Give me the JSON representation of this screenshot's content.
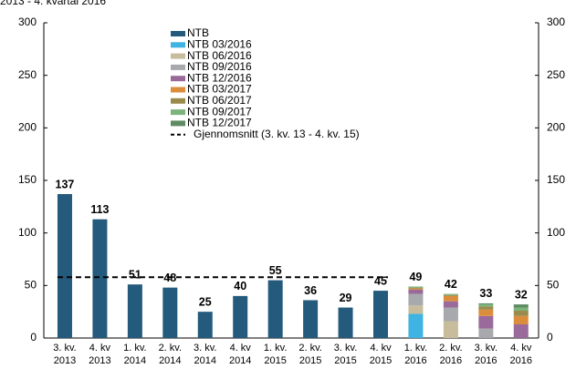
{
  "chart_data": {
    "type": "stacked_bar",
    "title": "2013 - 4. kvartal 2016",
    "categories": [
      [
        "3. kv.",
        "2013"
      ],
      [
        "4. kv",
        "2013"
      ],
      [
        "1. kv.",
        "2014"
      ],
      [
        "2. kv.",
        "2014"
      ],
      [
        "3. kv.",
        "2014"
      ],
      [
        "4. kv",
        "2014"
      ],
      [
        "1. kv.",
        "2015"
      ],
      [
        "2. kv.",
        "2015"
      ],
      [
        "3. kv.",
        "2015"
      ],
      [
        "4. kv",
        "2015"
      ],
      [
        "1. kv.",
        "2016"
      ],
      [
        "2. kv.",
        "2016"
      ],
      [
        "3. kv.",
        "2016"
      ],
      [
        "4. kv",
        "2016"
      ]
    ],
    "series": [
      {
        "name": "NTB",
        "color": "#245a7c",
        "values": [
          137,
          113,
          51,
          48,
          25,
          40,
          55,
          36,
          29,
          45,
          null,
          null,
          null,
          null
        ]
      },
      {
        "name": "NTB 03/2016",
        "color": "#3fb3e2",
        "values": [
          null,
          null,
          null,
          null,
          null,
          null,
          null,
          null,
          null,
          null,
          23,
          0,
          0,
          0
        ]
      },
      {
        "name": "NTB 06/2016",
        "color": "#c7bc9c",
        "values": [
          null,
          null,
          null,
          null,
          null,
          null,
          null,
          null,
          null,
          null,
          8,
          16,
          0,
          0
        ]
      },
      {
        "name": "NTB 09/2016",
        "color": "#a7a9ad",
        "values": [
          null,
          null,
          null,
          null,
          null,
          null,
          null,
          null,
          null,
          null,
          11,
          13,
          9,
          0
        ]
      },
      {
        "name": "NTB 12/2016",
        "color": "#9a6b9a",
        "values": [
          null,
          null,
          null,
          null,
          null,
          null,
          null,
          null,
          null,
          null,
          4,
          6,
          12,
          13
        ]
      },
      {
        "name": "NTB 03/2017",
        "color": "#dc8d3c",
        "values": [
          null,
          null,
          null,
          null,
          null,
          null,
          null,
          null,
          null,
          null,
          1,
          5,
          6,
          8
        ]
      },
      {
        "name": "NTB 06/2017",
        "color": "#9a8b4c",
        "values": [
          null,
          null,
          null,
          null,
          null,
          null,
          null,
          null,
          null,
          null,
          1,
          1,
          3,
          5
        ]
      },
      {
        "name": "NTB 09/2017",
        "color": "#7cb47c",
        "values": [
          null,
          null,
          null,
          null,
          null,
          null,
          null,
          null,
          null,
          null,
          1,
          1,
          2,
          3
        ]
      },
      {
        "name": "NTB 12/2017",
        "color": "#5e8c62",
        "values": [
          null,
          null,
          null,
          null,
          null,
          null,
          null,
          null,
          null,
          null,
          0,
          0,
          1,
          3
        ]
      }
    ],
    "data_labels": [
      137,
      113,
      51,
      48,
      25,
      40,
      55,
      36,
      29,
      45,
      49,
      42,
      33,
      32
    ],
    "average": {
      "name": "Gjennomsnitt (3. kv. 13 - 4. kv. 15)",
      "value": 57.9,
      "from": 0,
      "to": 9,
      "color": "#000000"
    },
    "ylim": [
      0,
      300
    ],
    "yticks": [
      0,
      50,
      100,
      150,
      200,
      250,
      300
    ],
    "y2lim": [
      0,
      300
    ],
    "y2ticks": [
      0,
      50,
      100,
      150,
      200,
      250,
      300
    ]
  }
}
